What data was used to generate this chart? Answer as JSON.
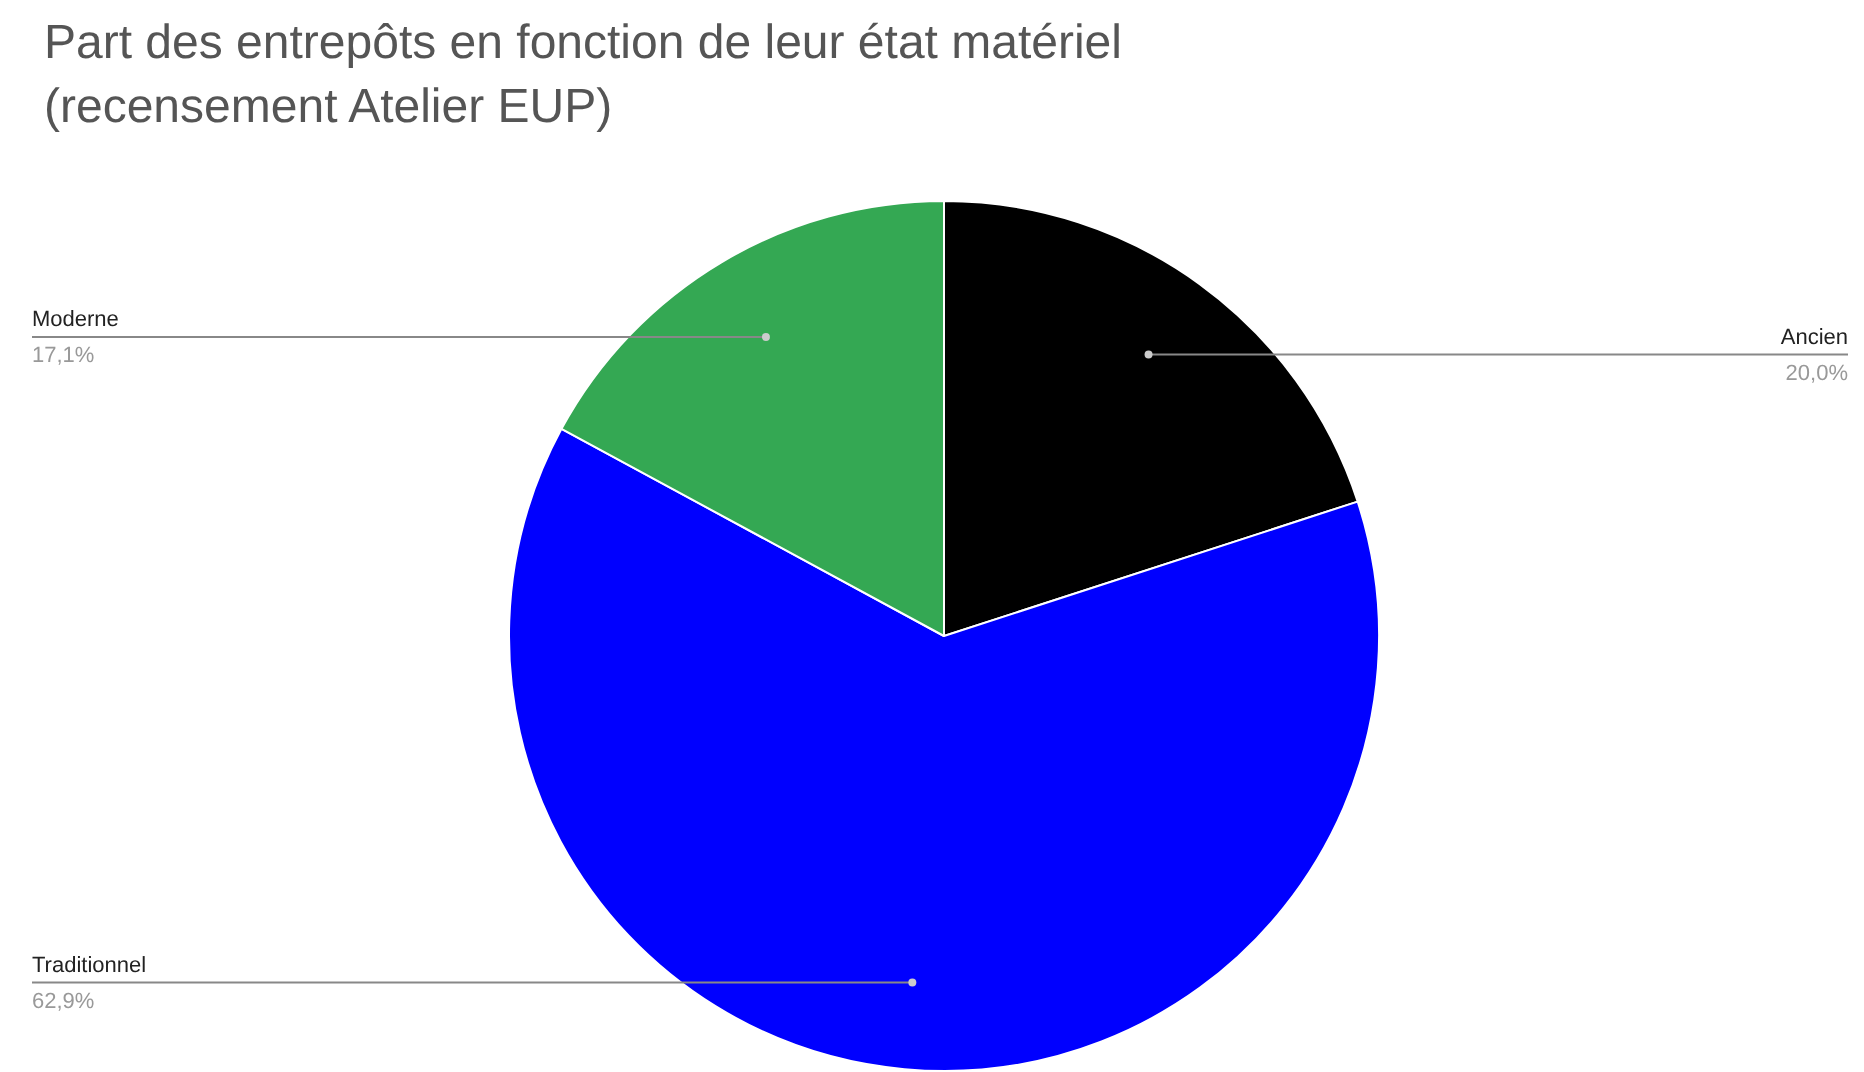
{
  "chart_data": {
    "type": "pie",
    "title": "Part des entrepôts en fonction de leur état matériel\n(recensement Atelier EUP)",
    "categories": [
      "Ancien",
      "Traditionnel",
      "Moderne"
    ],
    "values": [
      20.0,
      62.9,
      17.1
    ],
    "value_labels": [
      "20,0%",
      "62,9%",
      "17,1%"
    ],
    "colors": [
      "#000000",
      "#0000ff",
      "#34a853"
    ],
    "legend": false
  }
}
